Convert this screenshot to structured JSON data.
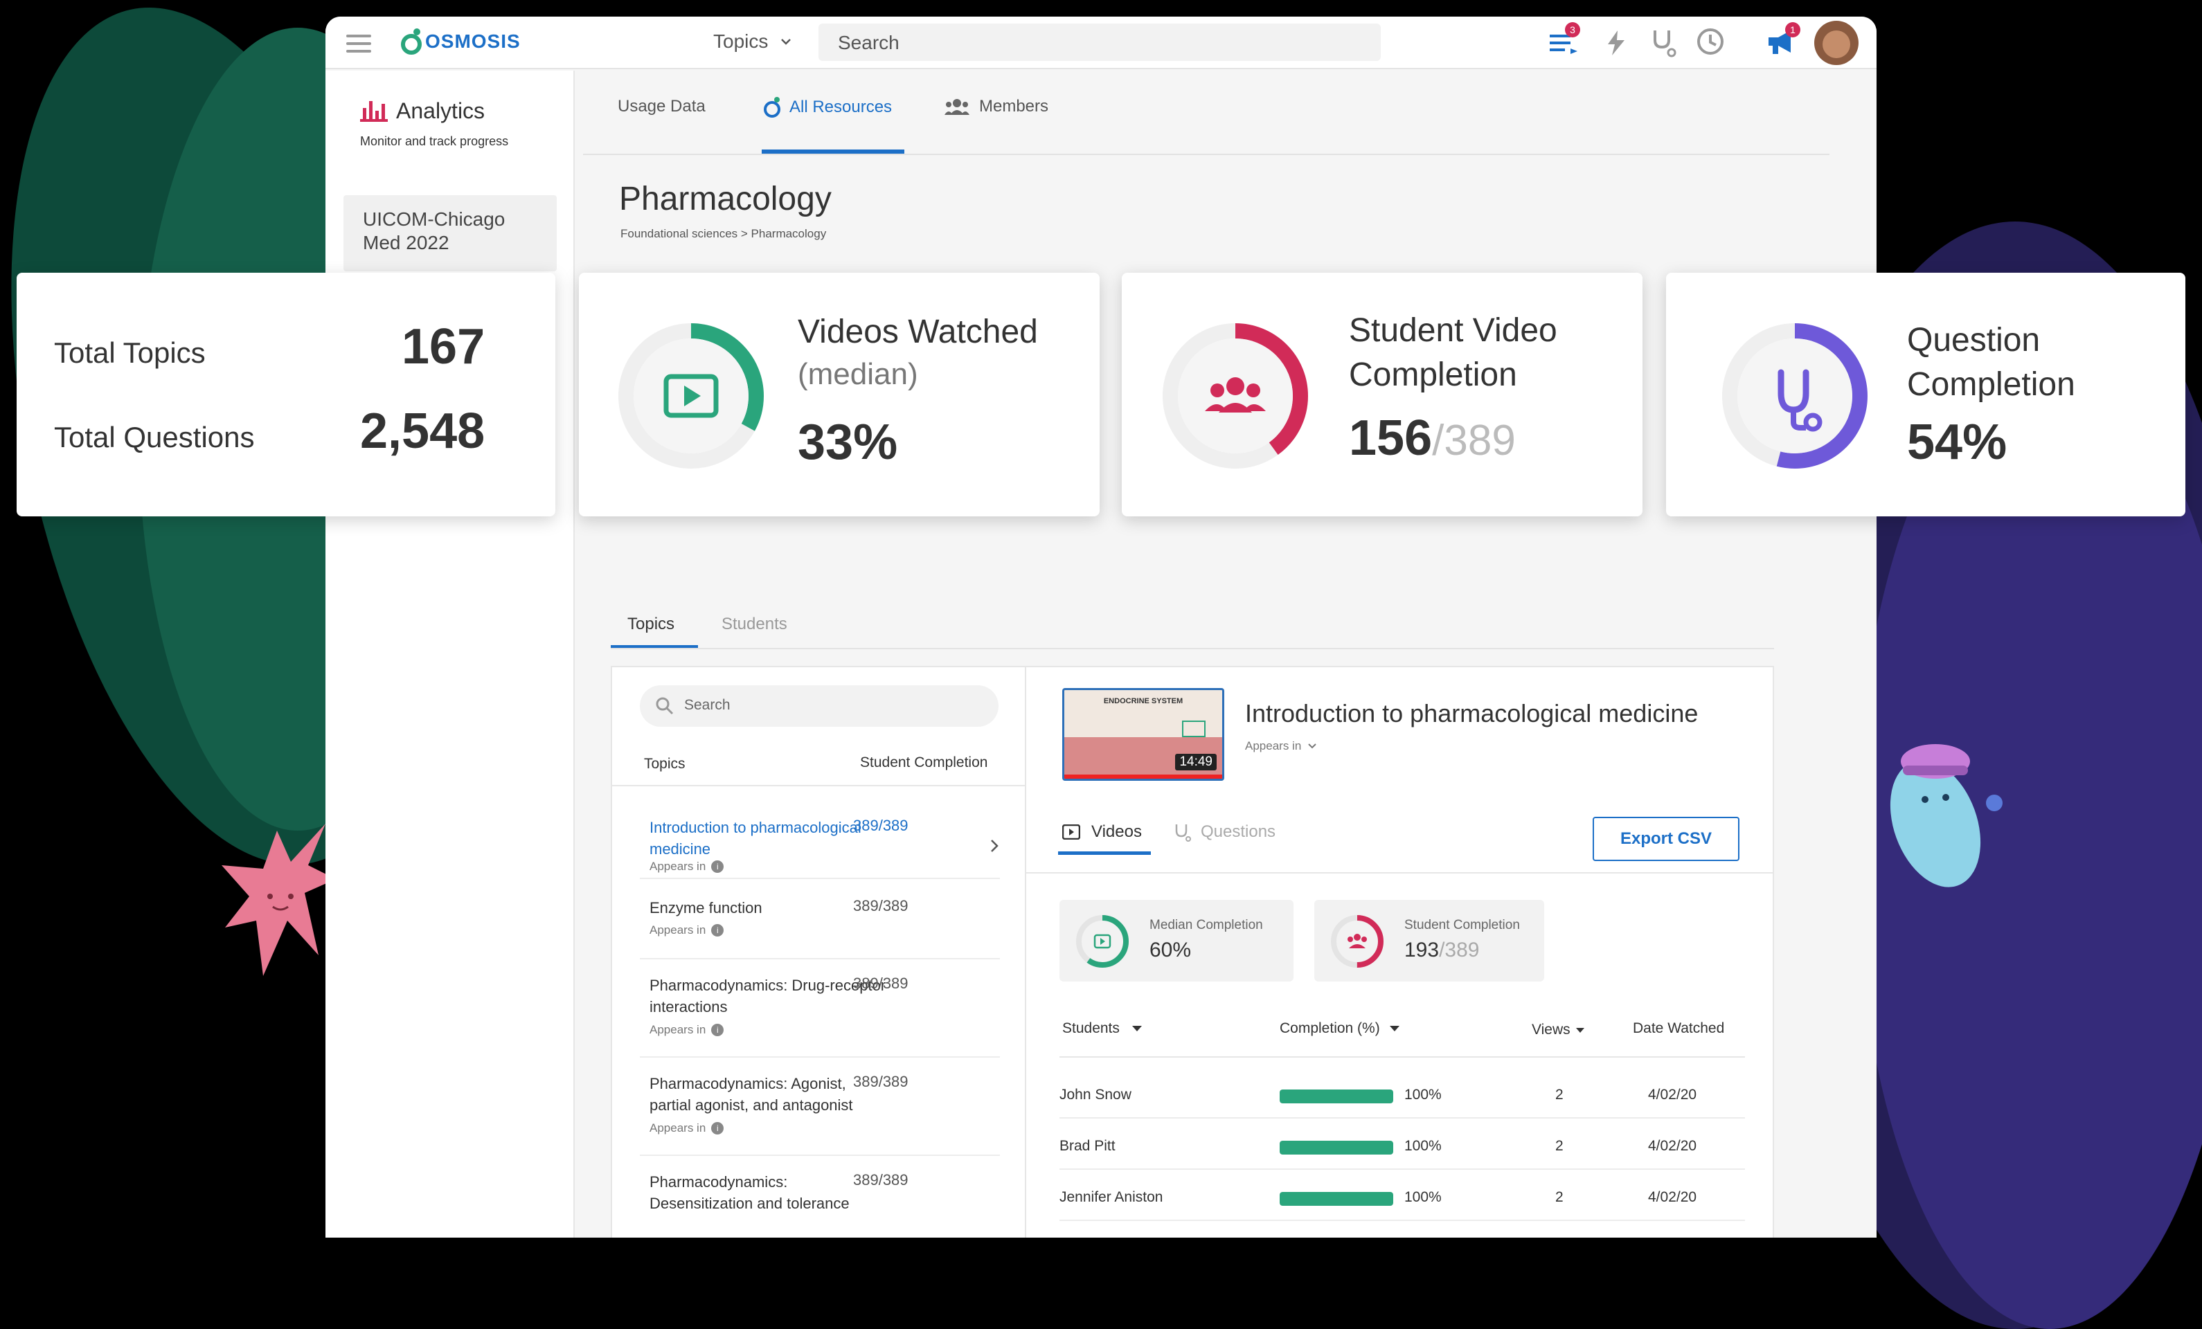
{
  "colors": {
    "green": "#2aa57c",
    "red": "#d12b58",
    "purple": "#6e59d9",
    "blue": "#1c6fc7",
    "brand": "#1c8a5a"
  },
  "topbar": {
    "logo": "OSMOSIS",
    "topics_label": "Topics",
    "search_placeholder": "Search",
    "notif_badge": "3",
    "announce_badge": "1"
  },
  "sidebar": {
    "title": "Analytics",
    "subtitle": "Monitor and track progress",
    "cohort": "UICOM-Chicago\nMed 2022"
  },
  "tabs": [
    {
      "label": "Usage Data"
    },
    {
      "label": "All Resources"
    },
    {
      "label": "Members"
    }
  ],
  "page": {
    "title": "Pharmacology",
    "breadcrumb": "Foundational sciences > Pharmacology"
  },
  "summary": {
    "total_topics_label": "Total Topics",
    "total_topics": "167",
    "total_questions_label": "Total Questions",
    "total_questions": "2,548"
  },
  "stats": [
    {
      "title": "Videos Watched",
      "subtitle": "(median)",
      "value": "33%",
      "fraction": 0.33
    },
    {
      "title": "Student Video\nCompletion",
      "value": "156",
      "total": "/389",
      "fraction": 0.4
    },
    {
      "title": "Question\nCompletion",
      "value": "54%",
      "fraction": 0.54
    }
  ],
  "subtabs": [
    {
      "label": "Topics"
    },
    {
      "label": "Students"
    }
  ],
  "topics_panel": {
    "search_placeholder": "Search",
    "col_topics": "Topics",
    "col_completion": "Student Completion",
    "appears": "Appears in",
    "rows": [
      {
        "name": "Introduction to pharmacological\nmedicine",
        "value": "389/389"
      },
      {
        "name": "Enzyme function",
        "value": "389/389"
      },
      {
        "name": "Pharmacodynamics: Drug-receptor\ninteractions",
        "value": "389/389"
      },
      {
        "name": "Pharmacodynamics: Agonist,\npartial agonist, and antagonist",
        "value": "389/389"
      },
      {
        "name": "Pharmacodynamics:\nDesensitization and tolerance",
        "value": "389/389"
      }
    ]
  },
  "detail": {
    "title": "Introduction to pharmacological medicine",
    "appears": "Appears in",
    "thumb_title": "ENDOCRINE SYSTEM",
    "duration": "14:49",
    "tab_videos": "Videos",
    "tab_questions": "Questions",
    "export": "Export CSV",
    "median_label": "Median Completion",
    "median_value": "60%",
    "median_fraction": 0.6,
    "student_label": "Student Completion",
    "student_value": "193",
    "student_total": "/389",
    "student_fraction": 0.5,
    "cols": {
      "students": "Students",
      "completion": "Completion (%)",
      "views": "Views",
      "date": "Date Watched"
    },
    "rows": [
      {
        "name": "John Snow",
        "pct": "100%",
        "fraction": 1.0,
        "views": "2",
        "date": "4/02/20"
      },
      {
        "name": "Brad Pitt",
        "pct": "100%",
        "fraction": 1.0,
        "views": "2",
        "date": "4/02/20"
      },
      {
        "name": "Jennifer Aniston",
        "pct": "100%",
        "fraction": 1.0,
        "views": "2",
        "date": "4/02/20"
      }
    ]
  }
}
